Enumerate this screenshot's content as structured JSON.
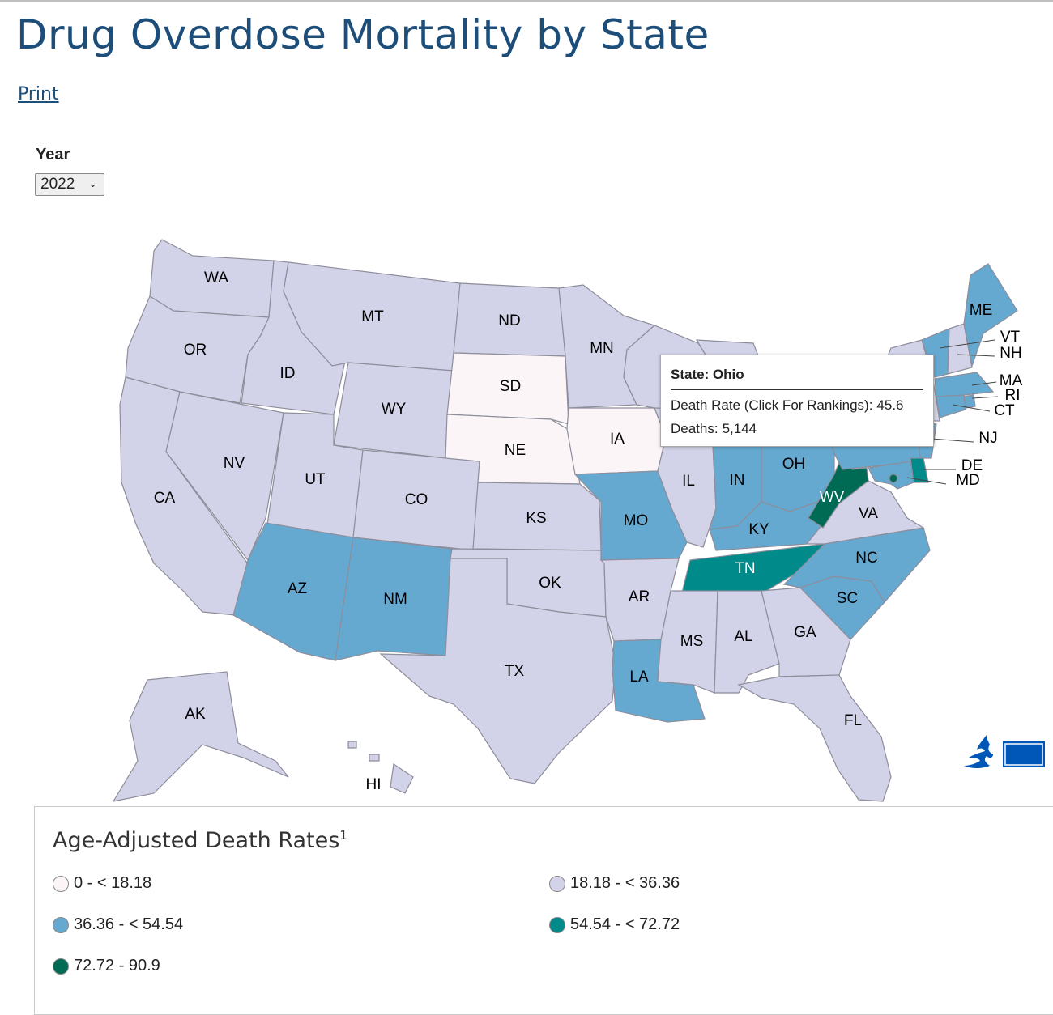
{
  "page": {
    "title": "Drug Overdose Mortality by State",
    "print_label": "Print",
    "year_label": "Year",
    "year_selected": "2022",
    "chevron": "⌄"
  },
  "colors": {
    "bin1": "#fbf5f7",
    "bin2": "#d2d2e8",
    "bin3": "#66a9d0",
    "bin4": "#008a8a",
    "bin5": "#006b55",
    "title": "#1d4e7a",
    "cdc_blue": "#0057b8"
  },
  "tooltip": {
    "title": "State: Ohio",
    "rate_label": "Death Rate (Click For Rankings):",
    "rate_value": "45.6",
    "deaths_label": "Deaths:",
    "deaths_value": "5,144"
  },
  "legend": {
    "title": "Age-Adjusted Death Rates",
    "footnote": "1",
    "items": [
      {
        "label": "0 - < 18.18",
        "color": "#fbf5f7"
      },
      {
        "label": "18.18 - < 36.36",
        "color": "#d2d2e8"
      },
      {
        "label": "36.36 - < 54.54",
        "color": "#66a9d0"
      },
      {
        "label": "54.54 - < 72.72",
        "color": "#008a8a"
      },
      {
        "label": "72.72 - 90.9",
        "color": "#006b55"
      }
    ]
  },
  "states": [
    {
      "id": "WA",
      "bin": 2
    },
    {
      "id": "OR",
      "bin": 2
    },
    {
      "id": "CA",
      "bin": 2
    },
    {
      "id": "ID",
      "bin": 2
    },
    {
      "id": "NV",
      "bin": 2
    },
    {
      "id": "MT",
      "bin": 2
    },
    {
      "id": "WY",
      "bin": 2
    },
    {
      "id": "UT",
      "bin": 2
    },
    {
      "id": "AZ",
      "bin": 3
    },
    {
      "id": "CO",
      "bin": 2
    },
    {
      "id": "NM",
      "bin": 3
    },
    {
      "id": "ND",
      "bin": 2
    },
    {
      "id": "SD",
      "bin": 1
    },
    {
      "id": "NE",
      "bin": 1
    },
    {
      "id": "KS",
      "bin": 2
    },
    {
      "id": "OK",
      "bin": 2
    },
    {
      "id": "TX",
      "bin": 2
    },
    {
      "id": "MN",
      "bin": 2
    },
    {
      "id": "IA",
      "bin": 1
    },
    {
      "id": "MO",
      "bin": 3
    },
    {
      "id": "AR",
      "bin": 2
    },
    {
      "id": "LA",
      "bin": 3
    },
    {
      "id": "WI",
      "bin": 2
    },
    {
      "id": "IL",
      "bin": 2
    },
    {
      "id": "MI",
      "bin": 2
    },
    {
      "id": "IN",
      "bin": 3
    },
    {
      "id": "OH",
      "bin": 3
    },
    {
      "id": "KY",
      "bin": 3
    },
    {
      "id": "TN",
      "bin": 4
    },
    {
      "id": "MS",
      "bin": 2
    },
    {
      "id": "AL",
      "bin": 2
    },
    {
      "id": "GA",
      "bin": 2
    },
    {
      "id": "FL",
      "bin": 2
    },
    {
      "id": "SC",
      "bin": 3
    },
    {
      "id": "NC",
      "bin": 3
    },
    {
      "id": "VA",
      "bin": 2
    },
    {
      "id": "WV",
      "bin": 5
    },
    {
      "id": "PA",
      "bin": 3
    },
    {
      "id": "NY",
      "bin": 2
    },
    {
      "id": "VT",
      "bin": 3
    },
    {
      "id": "NH",
      "bin": 2
    },
    {
      "id": "ME",
      "bin": 3
    },
    {
      "id": "MA",
      "bin": 3
    },
    {
      "id": "RI",
      "bin": 3
    },
    {
      "id": "CT",
      "bin": 3
    },
    {
      "id": "NJ",
      "bin": 3
    },
    {
      "id": "DE",
      "bin": 4
    },
    {
      "id": "MD",
      "bin": 3
    },
    {
      "id": "DC",
      "bin": 5
    },
    {
      "id": "AK",
      "bin": 2
    },
    {
      "id": "HI",
      "bin": 2
    }
  ]
}
